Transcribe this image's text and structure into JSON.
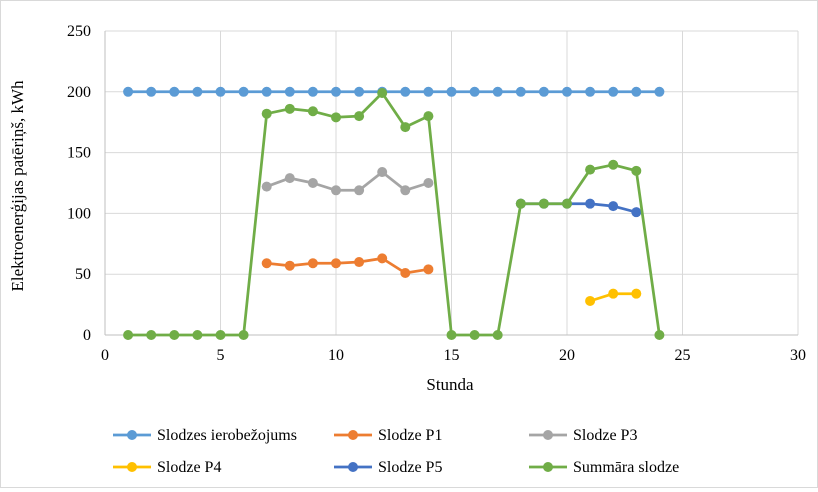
{
  "chart_data": {
    "type": "line",
    "title": "",
    "xlabel": "Stunda",
    "ylabel": "Elektroenerģijas patēriņš, kWh",
    "xlim": [
      0,
      30
    ],
    "ylim": [
      0,
      250
    ],
    "x_ticks": [
      0,
      5,
      10,
      15,
      20,
      25,
      30
    ],
    "y_ticks": [
      0,
      50,
      100,
      150,
      200,
      250
    ],
    "grid": true,
    "legend_position": "bottom",
    "series": [
      {
        "name": "Slodzes ierobežojums",
        "color": "#5b9bd5",
        "points": [
          [
            1,
            200
          ],
          [
            2,
            200
          ],
          [
            3,
            200
          ],
          [
            4,
            200
          ],
          [
            5,
            200
          ],
          [
            6,
            200
          ],
          [
            7,
            200
          ],
          [
            8,
            200
          ],
          [
            9,
            200
          ],
          [
            10,
            200
          ],
          [
            11,
            200
          ],
          [
            12,
            200
          ],
          [
            13,
            200
          ],
          [
            14,
            200
          ],
          [
            15,
            200
          ],
          [
            16,
            200
          ],
          [
            17,
            200
          ],
          [
            18,
            200
          ],
          [
            19,
            200
          ],
          [
            20,
            200
          ],
          [
            21,
            200
          ],
          [
            22,
            200
          ],
          [
            23,
            200
          ],
          [
            24,
            200
          ]
        ]
      },
      {
        "name": "Slodze P1",
        "color": "#ed7d31",
        "points": [
          [
            7,
            59
          ],
          [
            8,
            57
          ],
          [
            9,
            59
          ],
          [
            10,
            59
          ],
          [
            11,
            60
          ],
          [
            12,
            63
          ],
          [
            13,
            51
          ],
          [
            14,
            54
          ]
        ]
      },
      {
        "name": "Slodze P3",
        "color": "#a5a5a5",
        "points": [
          [
            7,
            122
          ],
          [
            8,
            129
          ],
          [
            9,
            125
          ],
          [
            10,
            119
          ],
          [
            11,
            119
          ],
          [
            12,
            134
          ],
          [
            13,
            119
          ],
          [
            14,
            125
          ]
        ]
      },
      {
        "name": "Slodze P4",
        "color": "#ffc000",
        "points": [
          [
            21,
            28
          ],
          [
            22,
            34
          ],
          [
            23,
            34
          ]
        ]
      },
      {
        "name": "Slodze P5",
        "color": "#4472c4",
        "points": [
          [
            18,
            108
          ],
          [
            19,
            108
          ],
          [
            20,
            108
          ],
          [
            21,
            108
          ],
          [
            22,
            106
          ],
          [
            23,
            101
          ]
        ]
      },
      {
        "name": "Summāra slodze",
        "color": "#70ad47",
        "points": [
          [
            1,
            0
          ],
          [
            2,
            0
          ],
          [
            3,
            0
          ],
          [
            4,
            0
          ],
          [
            5,
            0
          ],
          [
            6,
            0
          ],
          [
            7,
            182
          ],
          [
            8,
            186
          ],
          [
            9,
            184
          ],
          [
            10,
            179
          ],
          [
            11,
            180
          ],
          [
            12,
            199
          ],
          [
            13,
            171
          ],
          [
            14,
            180
          ],
          [
            15,
            0
          ],
          [
            16,
            0
          ],
          [
            17,
            0
          ],
          [
            18,
            108
          ],
          [
            19,
            108
          ],
          [
            20,
            108
          ],
          [
            21,
            136
          ],
          [
            22,
            140
          ],
          [
            23,
            135
          ],
          [
            24,
            0
          ]
        ]
      }
    ]
  }
}
